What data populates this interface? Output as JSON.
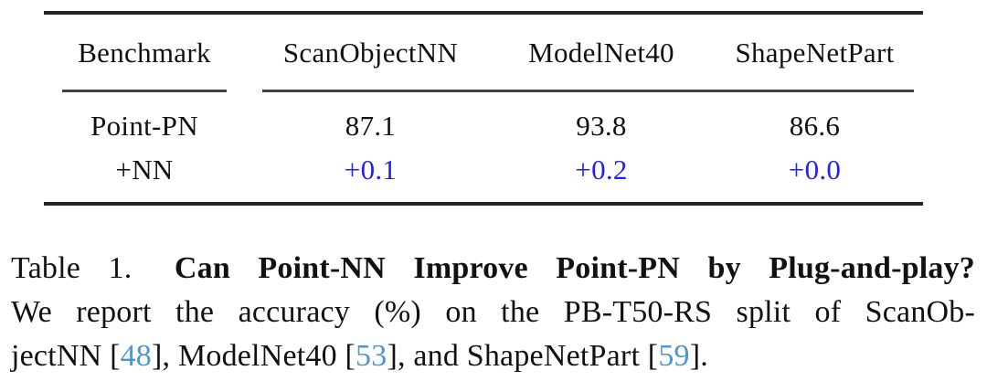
{
  "colors": {
    "delta-blue": "#1f1fee",
    "cite-blue": "#4e96cc"
  },
  "table": {
    "headers": [
      "Benchmark",
      "ScanObjectNN",
      "ModelNet40",
      "ShapeNetPart"
    ],
    "rows": [
      {
        "label": "Point-PN",
        "values": [
          "87.1",
          "93.8",
          "86.6"
        ]
      },
      {
        "label": "+NN",
        "values": [
          "+0.1",
          "+0.2",
          "+0.0"
        ]
      }
    ]
  },
  "caption": {
    "prefix": "Table 1.",
    "title_bold": "Can Point-NN Improve Point-PN by Plug-and-play?",
    "line2": "We report the accuracy (%) on the PB-T50-RS split of ScanOb-",
    "line3": {
      "seg1": "jectNN [",
      "cite1": "48",
      "seg2": "], ModelNet40 [",
      "cite2": "53",
      "seg3": "], and ShapeNetPart [",
      "cite3": "59",
      "seg4": "]."
    }
  },
  "chart_data": {
    "type": "table",
    "title": "Table 1. Can Point-NN Improve Point-PN by Plug-and-play?",
    "columns": [
      "Benchmark",
      "ScanObjectNN",
      "ModelNet40",
      "ShapeNetPart"
    ],
    "rows": [
      [
        "Point-PN",
        87.1,
        93.8,
        86.6
      ],
      [
        "+NN",
        "+0.1",
        "+0.2",
        "+0.0"
      ]
    ]
  }
}
